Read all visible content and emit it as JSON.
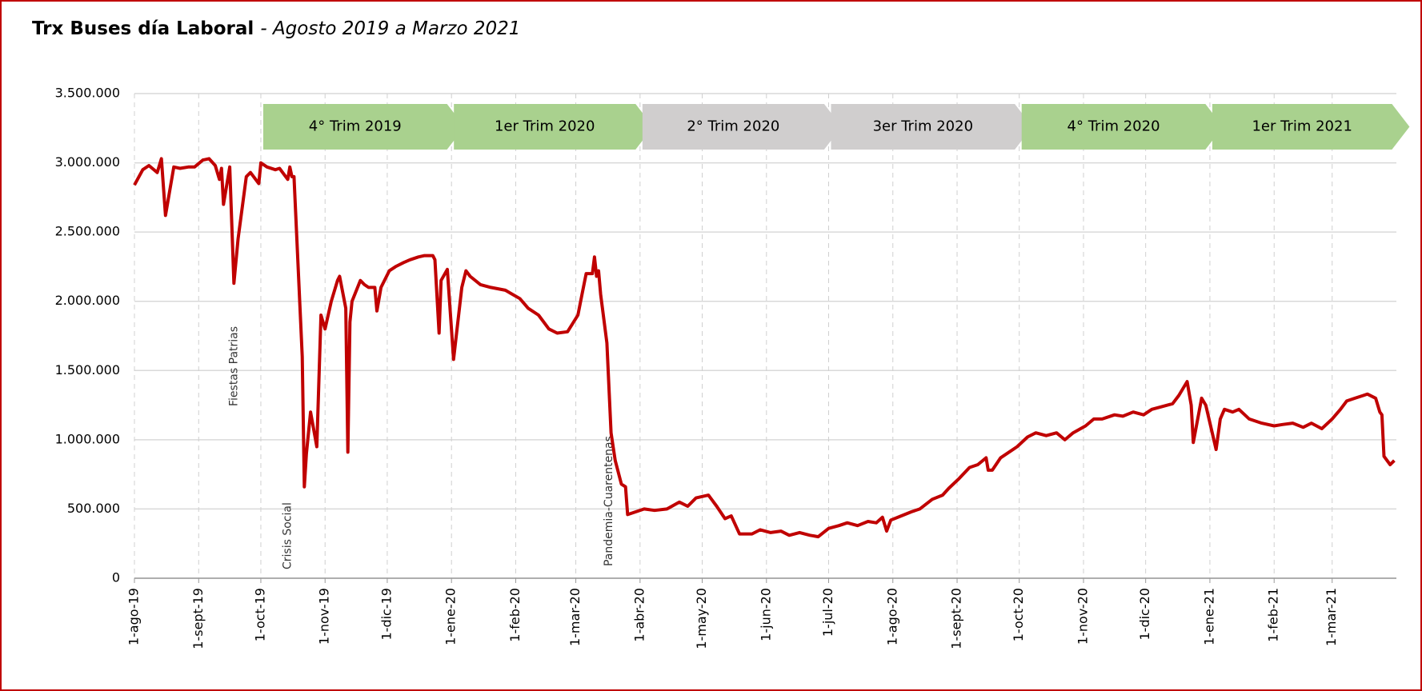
{
  "chart_data": {
    "type": "line",
    "title": "Trx Buses día Laboral",
    "subtitle": "- Agosto 2019 a Marzo 2021",
    "grid": true,
    "xlim": [
      "2019-08-01",
      "2021-04-01"
    ],
    "ylim": [
      0,
      3500000
    ],
    "yticks": [
      0,
      {
        "value": 500000,
        "label": "500.000"
      },
      {
        "value": 1000000,
        "label": "1.000.000"
      },
      {
        "value": 1500000,
        "label": "1.500.000"
      },
      {
        "value": 2000000,
        "label": "2.000.000"
      },
      {
        "value": 2500000,
        "label": "2.500.000"
      },
      {
        "value": 3000000,
        "label": "3.000.000"
      },
      {
        "value": 3500000,
        "label": "3.500.000"
      }
    ],
    "xticks": [
      {
        "value": "2019-08-01",
        "label": "1-ago-19"
      },
      {
        "value": "2019-09-01",
        "label": "1-sept-19"
      },
      {
        "value": "2019-10-01",
        "label": "1-oct-19"
      },
      {
        "value": "2019-11-01",
        "label": "1-nov-19"
      },
      {
        "value": "2019-12-01",
        "label": "1-dic-19"
      },
      {
        "value": "2020-01-01",
        "label": "1-ene-20"
      },
      {
        "value": "2020-02-01",
        "label": "1-feb-20"
      },
      {
        "value": "2020-03-01",
        "label": "1-mar-20"
      },
      {
        "value": "2020-04-01",
        "label": "1-abr-20"
      },
      {
        "value": "2020-05-01",
        "label": "1-may-20"
      },
      {
        "value": "2020-06-01",
        "label": "1-jun-20"
      },
      {
        "value": "2020-07-01",
        "label": "1-jul-20"
      },
      {
        "value": "2020-08-01",
        "label": "1-ago-20"
      },
      {
        "value": "2020-09-01",
        "label": "1-sept-20"
      },
      {
        "value": "2020-10-01",
        "label": "1-oct-20"
      },
      {
        "value": "2020-11-01",
        "label": "1-nov-20"
      },
      {
        "value": "2020-12-01",
        "label": "1-dic-20"
      },
      {
        "value": "2021-01-01",
        "label": "1-ene-21"
      },
      {
        "value": "2021-02-01",
        "label": "1-feb-21"
      },
      {
        "value": "2021-03-01",
        "label": "1-mar-21"
      }
    ],
    "periods": [
      {
        "text": "4° Trim 2019",
        "start": "2019-10-01",
        "end": "2019-12-31",
        "color": "#a9d18e"
      },
      {
        "text": "1er Trim 2020",
        "start": "2020-01-01",
        "end": "2020-03-31",
        "color": "#a9d18e"
      },
      {
        "text": "2° Trim 2020",
        "start": "2020-04-01",
        "end": "2020-06-30",
        "color": "#d0cece"
      },
      {
        "text": "3er Trim 2020",
        "start": "2020-07-01",
        "end": "2020-09-30",
        "color": "#d0cece"
      },
      {
        "text": "4° Trim 2020",
        "start": "2020-10-01",
        "end": "2020-12-31",
        "color": "#a9d18e"
      },
      {
        "text": "1er Trim 2021",
        "start": "2021-01-01",
        "end": "2021-03-31",
        "color": "#a9d18e"
      }
    ],
    "annotations": [
      {
        "text": "Fiestas Patrias",
        "x": "2019-09-18"
      },
      {
        "text": "Crisis Social",
        "x": "2019-10-14"
      },
      {
        "text": "Pandemia-Cuarentenas",
        "x": "2020-03-17"
      }
    ],
    "x": [
      "2019-08-01",
      "2019-08-05",
      "2019-08-08",
      "2019-08-12",
      "2019-08-14",
      "2019-08-16",
      "2019-08-20",
      "2019-08-23",
      "2019-08-27",
      "2019-08-30",
      "2019-09-03",
      "2019-09-06",
      "2019-09-09",
      "2019-09-11",
      "2019-09-12",
      "2019-09-13",
      "2019-09-16",
      "2019-09-18",
      "2019-09-20",
      "2019-09-24",
      "2019-09-26",
      "2019-09-30",
      "2019-10-01",
      "2019-10-04",
      "2019-10-08",
      "2019-10-10",
      "2019-10-14",
      "2019-10-15",
      "2019-10-16",
      "2019-10-17",
      "2019-10-21",
      "2019-10-22",
      "2019-10-23",
      "2019-10-25",
      "2019-10-28",
      "2019-10-30",
      "2019-11-01",
      "2019-11-04",
      "2019-11-07",
      "2019-11-08",
      "2019-11-11",
      "2019-11-12",
      "2019-11-13",
      "2019-11-14",
      "2019-11-18",
      "2019-11-20",
      "2019-11-22",
      "2019-11-25",
      "2019-11-26",
      "2019-11-28",
      "2019-12-02",
      "2019-12-05",
      "2019-12-09",
      "2019-12-12",
      "2019-12-16",
      "2019-12-19",
      "2019-12-23",
      "2019-12-24",
      "2019-12-26",
      "2019-12-27",
      "2019-12-30",
      "2020-01-02",
      "2020-01-06",
      "2020-01-08",
      "2020-01-10",
      "2020-01-15",
      "2020-01-20",
      "2020-01-27",
      "2020-02-03",
      "2020-02-07",
      "2020-02-12",
      "2020-02-17",
      "2020-02-21",
      "2020-02-26",
      "2020-03-02",
      "2020-03-04",
      "2020-03-06",
      "2020-03-09",
      "2020-03-10",
      "2020-03-11",
      "2020-03-12",
      "2020-03-13",
      "2020-03-16",
      "2020-03-18",
      "2020-03-20",
      "2020-03-23",
      "2020-03-25",
      "2020-03-26",
      "2020-03-30",
      "2020-04-03",
      "2020-04-08",
      "2020-04-14",
      "2020-04-20",
      "2020-04-24",
      "2020-04-28",
      "2020-05-04",
      "2020-05-08",
      "2020-05-12",
      "2020-05-15",
      "2020-05-19",
      "2020-05-25",
      "2020-05-29",
      "2020-06-03",
      "2020-06-08",
      "2020-06-12",
      "2020-06-17",
      "2020-06-22",
      "2020-06-26",
      "2020-07-01",
      "2020-07-06",
      "2020-07-10",
      "2020-07-15",
      "2020-07-20",
      "2020-07-24",
      "2020-07-27",
      "2020-07-29",
      "2020-07-31",
      "2020-08-05",
      "2020-08-10",
      "2020-08-14",
      "2020-08-20",
      "2020-08-25",
      "2020-08-28",
      "2020-09-02",
      "2020-09-07",
      "2020-09-11",
      "2020-09-15",
      "2020-09-16",
      "2020-09-18",
      "2020-09-22",
      "2020-09-25",
      "2020-09-30",
      "2020-10-05",
      "2020-10-09",
      "2020-10-14",
      "2020-10-19",
      "2020-10-23",
      "2020-10-27",
      "2020-11-02",
      "2020-11-06",
      "2020-11-10",
      "2020-11-16",
      "2020-11-20",
      "2020-11-25",
      "2020-11-30",
      "2020-12-04",
      "2020-12-09",
      "2020-12-14",
      "2020-12-17",
      "2020-12-21",
      "2020-12-23",
      "2020-12-24",
      "2020-12-28",
      "2020-12-30",
      "2021-01-04",
      "2021-01-06",
      "2021-01-08",
      "2021-01-12",
      "2021-01-15",
      "2021-01-20",
      "2021-01-26",
      "2021-02-01",
      "2021-02-05",
      "2021-02-10",
      "2021-02-15",
      "2021-02-19",
      "2021-02-24",
      "2021-03-01",
      "2021-03-05",
      "2021-03-08",
      "2021-03-12",
      "2021-03-16",
      "2021-03-18",
      "2021-03-22",
      "2021-03-24",
      "2021-03-25",
      "2021-03-26",
      "2021-03-29",
      "2021-03-31"
    ],
    "series": [
      {
        "color": "#c00000",
        "values": [
          2840000,
          2950000,
          2980000,
          2930000,
          3030000,
          2620000,
          2970000,
          2960000,
          2970000,
          2970000,
          3020000,
          3030000,
          2980000,
          2880000,
          2960000,
          2700000,
          2970000,
          2130000,
          2450000,
          2900000,
          2930000,
          2850000,
          3000000,
          2970000,
          2950000,
          2960000,
          2880000,
          2970000,
          2900000,
          2900000,
          1600000,
          660000,
          900000,
          1200000,
          950000,
          1900000,
          1800000,
          2000000,
          2150000,
          2180000,
          1950000,
          910000,
          1850000,
          2000000,
          2150000,
          2120000,
          2100000,
          2100000,
          1930000,
          2100000,
          2220000,
          2250000,
          2280000,
          2300000,
          2320000,
          2330000,
          2330000,
          2300000,
          1770000,
          2150000,
          2230000,
          1580000,
          2100000,
          2220000,
          2180000,
          2120000,
          2100000,
          2080000,
          2020000,
          1950000,
          1900000,
          1800000,
          1770000,
          1780000,
          1900000,
          2050000,
          2200000,
          2200000,
          2320000,
          2180000,
          2220000,
          2050000,
          1700000,
          1050000,
          850000,
          680000,
          660000,
          460000,
          480000,
          500000,
          490000,
          500000,
          550000,
          520000,
          580000,
          600000,
          520000,
          430000,
          450000,
          320000,
          320000,
          350000,
          330000,
          340000,
          310000,
          330000,
          310000,
          300000,
          360000,
          380000,
          400000,
          380000,
          410000,
          400000,
          440000,
          340000,
          420000,
          450000,
          480000,
          500000,
          570000,
          600000,
          650000,
          720000,
          800000,
          820000,
          870000,
          780000,
          780000,
          870000,
          900000,
          950000,
          1020000,
          1050000,
          1030000,
          1050000,
          1000000,
          1050000,
          1100000,
          1150000,
          1150000,
          1180000,
          1170000,
          1200000,
          1180000,
          1220000,
          1240000,
          1260000,
          1320000,
          1420000,
          1250000,
          980000,
          1300000,
          1250000,
          930000,
          1150000,
          1220000,
          1200000,
          1220000,
          1150000,
          1120000,
          1100000,
          1110000,
          1120000,
          1090000,
          1120000,
          1080000,
          1150000,
          1220000,
          1280000,
          1300000,
          1320000,
          1330000,
          1300000,
          1200000,
          1180000,
          880000,
          820000,
          850000
        ]
      }
    ]
  }
}
